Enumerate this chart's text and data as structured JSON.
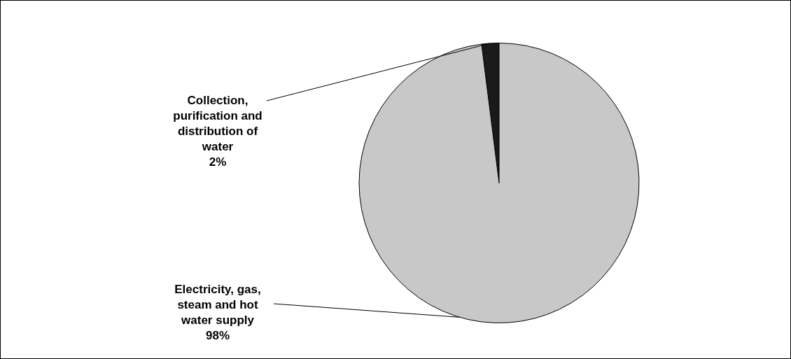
{
  "chart_data": {
    "type": "pie",
    "categories": [
      "Collection, purification and distribution of water",
      "Electricity, gas, steam and hot water supply"
    ],
    "values": [
      2,
      98
    ],
    "value_labels": [
      "2%",
      "98%"
    ],
    "colors": [
      "#1a1a1a",
      "#c8c8c8"
    ],
    "legend": false
  }
}
